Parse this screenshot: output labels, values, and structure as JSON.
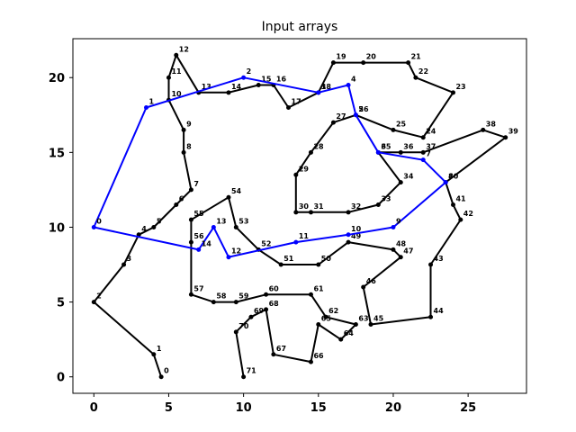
{
  "chart_data": {
    "type": "line",
    "title": "Input arrays",
    "xlabel": "",
    "ylabel": "",
    "xlim": [
      -1.4,
      28.9
    ],
    "ylim": [
      -1.1,
      22.6
    ],
    "xticks": [
      0,
      5,
      10,
      15,
      20,
      25
    ],
    "yticks": [
      0,
      5,
      10,
      15,
      20
    ],
    "grid": false,
    "series": [
      {
        "color": "#000000",
        "closed": false,
        "points": [
          {
            "label": "0",
            "x": 4.5,
            "y": 0.0
          },
          {
            "label": "1",
            "x": 4.0,
            "y": 1.5
          },
          {
            "label": "2",
            "x": 0.0,
            "y": 5.0
          },
          {
            "label": "3",
            "x": 2.0,
            "y": 7.5
          },
          {
            "label": "4",
            "x": 3.0,
            "y": 9.5
          },
          {
            "label": "5",
            "x": 4.0,
            "y": 10.0
          },
          {
            "label": "6",
            "x": 5.5,
            "y": 11.5
          },
          {
            "label": "7",
            "x": 6.5,
            "y": 12.5
          },
          {
            "label": "8",
            "x": 6.0,
            "y": 15.0
          },
          {
            "label": "9",
            "x": 6.0,
            "y": 16.5
          },
          {
            "label": "10",
            "x": 5.0,
            "y": 18.5
          },
          {
            "label": "11",
            "x": 5.0,
            "y": 20.0
          },
          {
            "label": "12",
            "x": 5.5,
            "y": 21.5
          },
          {
            "label": "13",
            "x": 7.0,
            "y": 19.0
          },
          {
            "label": "14",
            "x": 9.0,
            "y": 19.0
          },
          {
            "label": "15",
            "x": 11.0,
            "y": 19.5
          },
          {
            "label": "16",
            "x": 12.0,
            "y": 19.5
          },
          {
            "label": "17",
            "x": 13.0,
            "y": 18.0
          },
          {
            "label": "18",
            "x": 15.0,
            "y": 19.0
          },
          {
            "label": "19",
            "x": 16.0,
            "y": 21.0
          },
          {
            "label": "20",
            "x": 18.0,
            "y": 21.0
          },
          {
            "label": "21",
            "x": 21.0,
            "y": 21.0
          },
          {
            "label": "22",
            "x": 21.5,
            "y": 20.0
          },
          {
            "label": "23",
            "x": 24.0,
            "y": 19.0
          },
          {
            "label": "24",
            "x": 22.0,
            "y": 16.0
          },
          {
            "label": "25",
            "x": 20.0,
            "y": 16.5
          },
          {
            "label": "26",
            "x": 17.5,
            "y": 17.5
          },
          {
            "label": "27",
            "x": 16.0,
            "y": 17.0
          },
          {
            "label": "28",
            "x": 14.5,
            "y": 15.0
          },
          {
            "label": "29",
            "x": 13.5,
            "y": 13.5
          },
          {
            "label": "30",
            "x": 13.5,
            "y": 11.0
          },
          {
            "label": "31",
            "x": 14.5,
            "y": 11.0
          },
          {
            "label": "32",
            "x": 17.0,
            "y": 11.0
          },
          {
            "label": "33",
            "x": 19.0,
            "y": 11.5
          },
          {
            "label": "34",
            "x": 20.5,
            "y": 13.0
          },
          {
            "label": "35",
            "x": 19.0,
            "y": 15.0
          },
          {
            "label": "36",
            "x": 20.5,
            "y": 15.0
          },
          {
            "label": "37",
            "x": 22.0,
            "y": 15.0
          },
          {
            "label": "38",
            "x": 26.0,
            "y": 16.5
          },
          {
            "label": "39",
            "x": 27.5,
            "y": 16.0
          },
          {
            "label": "40",
            "x": 23.5,
            "y": 13.0
          },
          {
            "label": "41",
            "x": 24.0,
            "y": 11.5
          },
          {
            "label": "42",
            "x": 24.5,
            "y": 10.5
          },
          {
            "label": "43",
            "x": 22.5,
            "y": 7.5
          },
          {
            "label": "44",
            "x": 22.5,
            "y": 4.0
          },
          {
            "label": "45",
            "x": 18.5,
            "y": 3.5
          },
          {
            "label": "46",
            "x": 18.0,
            "y": 6.0
          },
          {
            "label": "47",
            "x": 20.5,
            "y": 8.0
          },
          {
            "label": "48",
            "x": 20.0,
            "y": 8.5
          },
          {
            "label": "49",
            "x": 17.0,
            "y": 9.0
          },
          {
            "label": "50",
            "x": 15.0,
            "y": 7.5
          },
          {
            "label": "51",
            "x": 12.5,
            "y": 7.5
          },
          {
            "label": "52",
            "x": 11.0,
            "y": 8.5
          },
          {
            "label": "53",
            "x": 9.5,
            "y": 10.0
          },
          {
            "label": "54",
            "x": 9.0,
            "y": 12.0
          },
          {
            "label": "55",
            "x": 6.5,
            "y": 10.5
          },
          {
            "label": "56",
            "x": 6.5,
            "y": 9.0
          },
          {
            "label": "57",
            "x": 6.5,
            "y": 5.5
          },
          {
            "label": "58",
            "x": 8.0,
            "y": 5.0
          },
          {
            "label": "59",
            "x": 9.5,
            "y": 5.0
          },
          {
            "label": "60",
            "x": 11.5,
            "y": 5.5
          },
          {
            "label": "61",
            "x": 14.5,
            "y": 5.5
          },
          {
            "label": "62",
            "x": 15.5,
            "y": 4.0
          },
          {
            "label": "63",
            "x": 17.5,
            "y": 3.5
          },
          {
            "label": "64",
            "x": 16.5,
            "y": 2.5
          },
          {
            "label": "65",
            "x": 15.0,
            "y": 3.5
          },
          {
            "label": "66",
            "x": 14.5,
            "y": 1.0
          },
          {
            "label": "67",
            "x": 12.0,
            "y": 1.5
          },
          {
            "label": "68",
            "x": 11.5,
            "y": 4.5
          },
          {
            "label": "69",
            "x": 10.5,
            "y": 4.0
          },
          {
            "label": "70",
            "x": 9.5,
            "y": 3.0
          },
          {
            "label": "71",
            "x": 10.0,
            "y": 0.0
          }
        ]
      },
      {
        "color": "#0000ff",
        "closed": true,
        "points": [
          {
            "label": "0",
            "x": 0.0,
            "y": 10.0
          },
          {
            "label": "1",
            "x": 3.5,
            "y": 18.0
          },
          {
            "label": "2",
            "x": 10.0,
            "y": 20.0
          },
          {
            "label": "3",
            "x": 15.0,
            "y": 19.0
          },
          {
            "label": "4",
            "x": 17.0,
            "y": 19.5
          },
          {
            "label": "5",
            "x": 17.5,
            "y": 17.5
          },
          {
            "label": "6",
            "x": 19.0,
            "y": 15.0
          },
          {
            "label": "7",
            "x": 22.0,
            "y": 14.5
          },
          {
            "label": "8",
            "x": 23.5,
            "y": 13.0
          },
          {
            "label": "9",
            "x": 20.0,
            "y": 10.0
          },
          {
            "label": "10",
            "x": 17.0,
            "y": 9.5
          },
          {
            "label": "11",
            "x": 13.5,
            "y": 9.0
          },
          {
            "label": "12",
            "x": 9.0,
            "y": 8.0
          },
          {
            "label": "13",
            "x": 8.0,
            "y": 10.0
          },
          {
            "label": "14",
            "x": 7.0,
            "y": 8.5
          }
        ]
      }
    ]
  }
}
